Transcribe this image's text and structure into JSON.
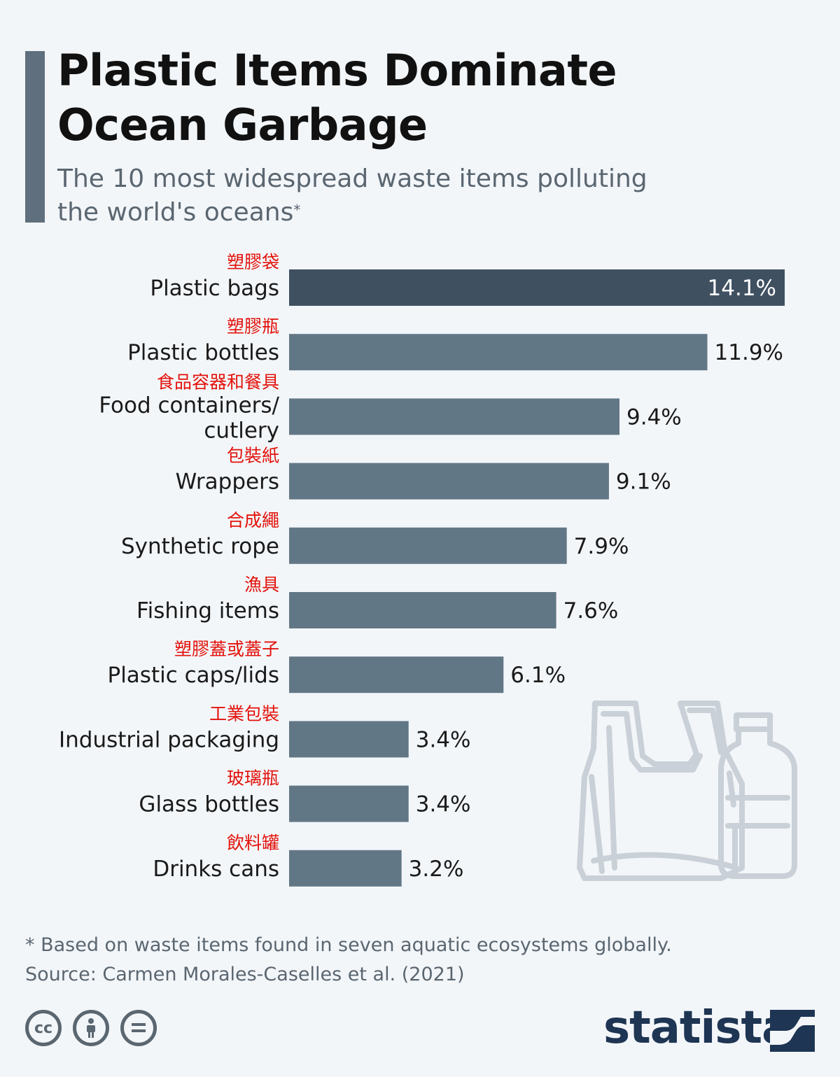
{
  "title": "Plastic Items Dominate\nOcean Garbage",
  "subtitle": "The 10 most widespread waste items polluting the world's oceans",
  "subtitle_marker": "*",
  "footnote": "* Based on waste items found in seven aquatic ecosystems globally.",
  "source": "Source: Carmen Morales-Caselles et al. (2021)",
  "brand": "statista",
  "icons": [
    "cc-license-icon",
    "attribution-icon",
    "no-derivatives-icon",
    "statista-logo-icon",
    "plastic-bag-and-bottle-illustration"
  ],
  "colors": {
    "highlight_bar": "#3f5061",
    "bar": "#627786",
    "chinese_label": "#e3120b",
    "accent": "#5f6f7d",
    "brand": "#1e3553"
  },
  "chart_data": {
    "type": "bar",
    "orientation": "horizontal",
    "unit": "%",
    "categories": [
      {
        "en": [
          "Plastic bags"
        ],
        "zh": "塑膠袋"
      },
      {
        "en": [
          "Plastic bottles"
        ],
        "zh": "塑膠瓶"
      },
      {
        "en": [
          "Food containers/",
          "cutlery"
        ],
        "zh": "食品容器和餐具"
      },
      {
        "en": [
          "Wrappers"
        ],
        "zh": "包裝紙"
      },
      {
        "en": [
          "Synthetic rope"
        ],
        "zh": "合成繩"
      },
      {
        "en": [
          "Fishing items"
        ],
        "zh": "漁具"
      },
      {
        "en": [
          "Plastic caps/lids"
        ],
        "zh": "塑膠蓋或蓋子"
      },
      {
        "en": [
          "Industrial packaging"
        ],
        "zh": "工業包裝"
      },
      {
        "en": [
          "Glass bottles"
        ],
        "zh": "玻璃瓶"
      },
      {
        "en": [
          "Drinks cans"
        ],
        "zh": "飲料罐"
      }
    ],
    "values": [
      14.1,
      11.9,
      9.4,
      9.1,
      7.9,
      7.6,
      6.1,
      3.4,
      3.4,
      3.2
    ],
    "value_labels": [
      "14.1%",
      "11.9%",
      "9.4%",
      "9.1%",
      "7.9%",
      "7.6%",
      "6.1%",
      "3.4%",
      "3.4%",
      "3.2%"
    ],
    "xlim": [
      0,
      14.1
    ],
    "grid": false,
    "legend": "none"
  }
}
